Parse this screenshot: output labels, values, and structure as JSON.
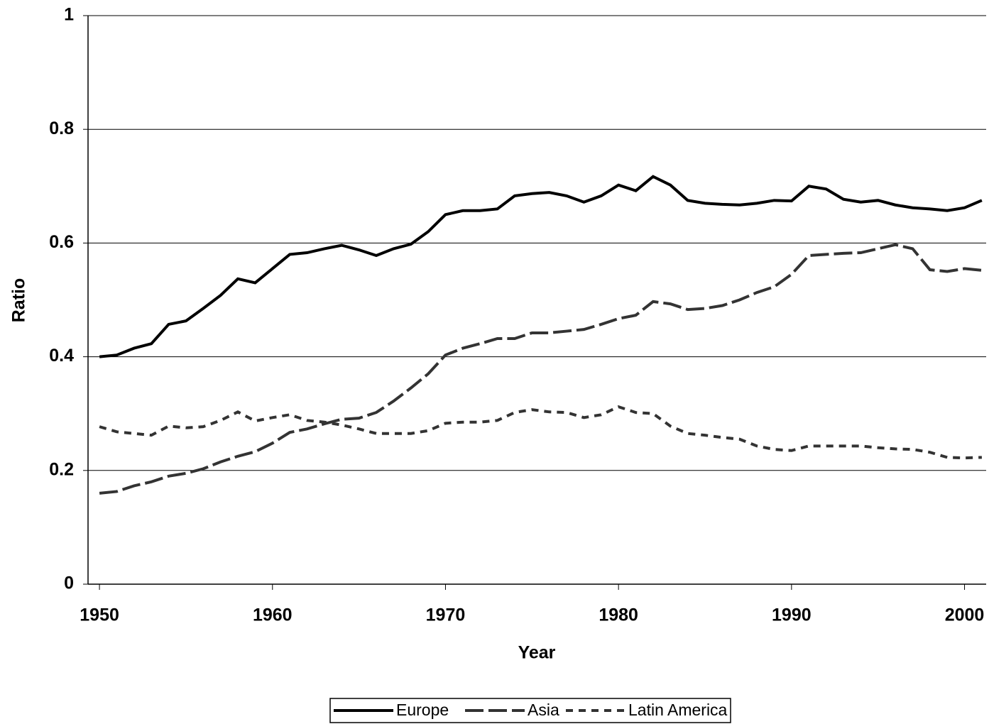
{
  "chart_data": {
    "type": "line",
    "x_label": "Year",
    "y_label": "Ratio",
    "x": [
      1950,
      1951,
      1952,
      1953,
      1954,
      1955,
      1956,
      1957,
      1958,
      1959,
      1960,
      1961,
      1962,
      1963,
      1964,
      1965,
      1966,
      1967,
      1968,
      1969,
      1970,
      1971,
      1972,
      1973,
      1974,
      1975,
      1976,
      1977,
      1978,
      1979,
      1980,
      1981,
      1982,
      1983,
      1984,
      1985,
      1986,
      1987,
      1988,
      1989,
      1990,
      1991,
      1992,
      1993,
      1994,
      1995,
      1996,
      1997,
      1998,
      1999,
      2000,
      2001
    ],
    "series": [
      {
        "name": "Europe",
        "color": "#000000",
        "line_style": "solid",
        "values": [
          0.4,
          0.403,
          0.415,
          0.423,
          0.457,
          0.463,
          0.485,
          0.508,
          0.537,
          0.53,
          0.555,
          0.58,
          0.583,
          0.59,
          0.596,
          0.588,
          0.578,
          0.59,
          0.598,
          0.62,
          0.65,
          0.657,
          0.657,
          0.66,
          0.683,
          0.687,
          0.689,
          0.683,
          0.672,
          0.683,
          0.702,
          0.692,
          0.717,
          0.702,
          0.675,
          0.67,
          0.668,
          0.667,
          0.67,
          0.675,
          0.674,
          0.7,
          0.695,
          0.677,
          0.672,
          0.675,
          0.667,
          0.662,
          0.66,
          0.657,
          0.662,
          0.675
        ]
      },
      {
        "name": "Asia",
        "color": "#333333",
        "line_style": "dashed",
        "values": [
          0.16,
          0.163,
          0.173,
          0.18,
          0.19,
          0.195,
          0.203,
          0.215,
          0.225,
          0.233,
          0.248,
          0.267,
          0.273,
          0.282,
          0.29,
          0.292,
          0.302,
          0.322,
          0.345,
          0.37,
          0.403,
          0.415,
          0.423,
          0.432,
          0.432,
          0.442,
          0.442,
          0.445,
          0.448,
          0.457,
          0.467,
          0.473,
          0.497,
          0.493,
          0.483,
          0.485,
          0.49,
          0.5,
          0.513,
          0.523,
          0.545,
          0.578,
          0.58,
          0.582,
          0.583,
          0.59,
          0.597,
          0.59,
          0.553,
          0.55,
          0.555,
          0.552
        ]
      },
      {
        "name": "Latin America",
        "color": "#333333",
        "line_style": "dotted",
        "values": [
          0.277,
          0.268,
          0.265,
          0.262,
          0.278,
          0.275,
          0.277,
          0.288,
          0.303,
          0.287,
          0.293,
          0.298,
          0.288,
          0.285,
          0.28,
          0.273,
          0.265,
          0.265,
          0.265,
          0.27,
          0.283,
          0.285,
          0.285,
          0.288,
          0.302,
          0.307,
          0.303,
          0.302,
          0.293,
          0.298,
          0.312,
          0.302,
          0.3,
          0.278,
          0.265,
          0.262,
          0.258,
          0.255,
          0.243,
          0.237,
          0.235,
          0.243,
          0.243,
          0.243,
          0.243,
          0.24,
          0.238,
          0.237,
          0.232,
          0.223,
          0.222,
          0.223
        ]
      }
    ],
    "xlim": [
      1949.34,
      2001.25
    ],
    "xticks": [
      1950,
      1960,
      1970,
      1980,
      1990,
      2000
    ],
    "ylim": [
      0,
      1
    ],
    "yticks": [
      0,
      0.2,
      0.4,
      0.6,
      0.8,
      1
    ],
    "grid": true,
    "legend": "bottom"
  }
}
